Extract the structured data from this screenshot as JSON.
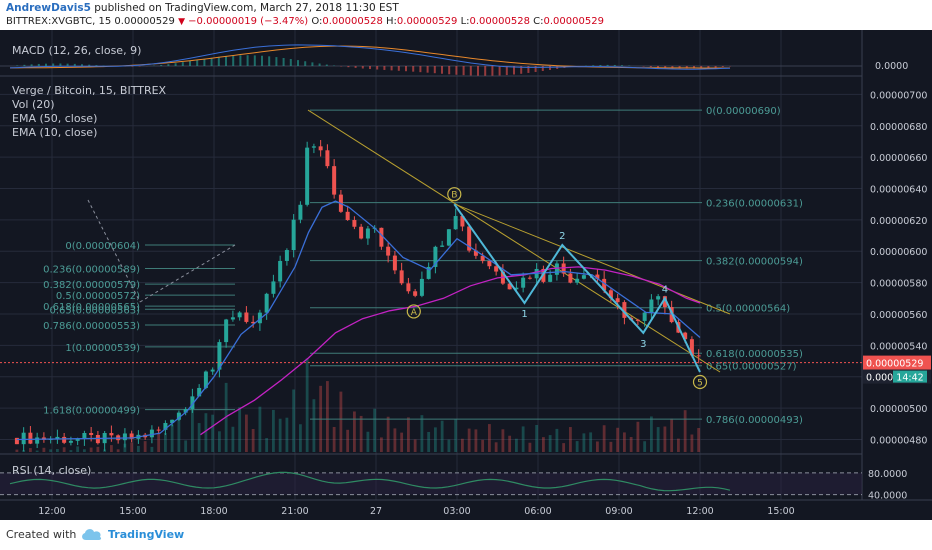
{
  "header": {
    "author": "AndrewDavis5",
    "published_text": "published on TradingView.com, March 27, 2018 11:30 EST",
    "symbol": "BITTREX:XVGBTC, 15",
    "last": "0.00000529",
    "change": "−0.00000019 (−3.47%)",
    "o_label": "O:",
    "o_value": "0.00000528",
    "h_label": "H:",
    "h_value": "0.00000529",
    "l_label": "L:",
    "l_value": "0.00000528",
    "c_label": "C:",
    "c_value": "0.00000529"
  },
  "indicators": {
    "macd": "MACD (12, 26, close, 9)",
    "symbol_title": "Verge / Bitcoin, 15, BITTREX",
    "vol": "Vol (20)",
    "ema50": "EMA (50, close)",
    "ema10": "EMA (10, close)",
    "rsi": "RSI (14, close)"
  },
  "footer": {
    "created_with": "Created with",
    "brand": "TradingView"
  },
  "colors": {
    "background": "#131722",
    "grid": "#262b3b",
    "up": "#26a69a",
    "down": "#ef5350",
    "ema50": "#c322c3",
    "ema10": "#3a6fd8",
    "pattern": "#4fb8d8",
    "fib": "#3f7c78",
    "fib_text": "#4c9c96",
    "macd_line": "#3a6fd8",
    "signal_line": "#e8882b",
    "rsi_line": "#2f8a63"
  },
  "chart_data": {
    "type": "candlestick",
    "title": "Verge / Bitcoin, 15, BITTREX",
    "y_ticks": [
      "0.00000700",
      "0.00000680",
      "0.00000660",
      "0.00000640",
      "0.00000620",
      "0.00000600",
      "0.00000580",
      "0.00000560",
      "0.00000540",
      "0.00000520",
      "0.00000500",
      "0.00000480"
    ],
    "ylim": [
      4.72e-06,
      7.06e-06
    ],
    "last_price_label": "0.00000529",
    "last_tag_text": "0.000",
    "countdown": "14:42",
    "x_ticks": [
      {
        "label": "12:00",
        "hour": -12
      },
      {
        "label": "15:00",
        "hour": -9
      },
      {
        "label": "18:00",
        "hour": -6
      },
      {
        "label": "21:00",
        "hour": -3
      },
      {
        "label": "27",
        "hour": 0
      },
      {
        "label": "03:00",
        "hour": 3
      },
      {
        "label": "06:00",
        "hour": 6
      },
      {
        "label": "09:00",
        "hour": 9
      },
      {
        "label": "12:00",
        "hour": 12
      },
      {
        "label": "15:00",
        "hour": 15
      }
    ],
    "x_start_hour": -13.3,
    "x_end_hour": 12.0,
    "candle_interval_hours": 0.25,
    "close_points": [
      [
        -13.3,
        481
      ],
      [
        -9.5,
        480
      ],
      [
        -9.0,
        481
      ],
      [
        -8.5,
        483
      ],
      [
        -8.0,
        486
      ],
      [
        -7.5,
        494
      ],
      [
        -7.2,
        503
      ],
      [
        -7.0,
        500
      ],
      [
        -6.6,
        515
      ],
      [
        -6.3,
        526
      ],
      [
        -6.0,
        525
      ],
      [
        -5.5,
        558
      ],
      [
        -5.0,
        562
      ],
      [
        -4.7,
        555
      ],
      [
        -4.4,
        552
      ],
      [
        -4.0,
        572
      ],
      [
        -3.6,
        590
      ],
      [
        -3.3,
        600
      ],
      [
        -3.0,
        620
      ],
      [
        -2.8,
        630
      ],
      [
        -2.5,
        676
      ],
      [
        -2.2,
        660
      ],
      [
        -1.9,
        664
      ],
      [
        -1.5,
        632
      ],
      [
        -1.0,
        622
      ],
      [
        -0.5,
        610
      ],
      [
        0.0,
        615
      ],
      [
        0.3,
        598
      ],
      [
        0.7,
        588
      ],
      [
        1.1,
        578
      ],
      [
        1.4,
        572
      ],
      [
        1.7,
        585
      ],
      [
        2.0,
        595
      ],
      [
        2.3,
        603
      ],
      [
        2.6,
        612
      ],
      [
        2.9,
        628
      ],
      [
        3.2,
        615
      ],
      [
        3.5,
        600
      ],
      [
        3.9,
        596
      ],
      [
        4.3,
        590
      ],
      [
        4.7,
        582
      ],
      [
        5.1,
        578
      ],
      [
        5.5,
        583
      ],
      [
        5.9,
        588
      ],
      [
        6.2,
        583
      ],
      [
        6.6,
        592
      ],
      [
        6.9,
        587
      ],
      [
        7.3,
        582
      ],
      [
        7.7,
        588
      ],
      [
        8.1,
        585
      ],
      [
        8.5,
        575
      ],
      [
        8.9,
        566
      ],
      [
        9.2,
        555
      ],
      [
        9.5,
        560
      ],
      [
        9.8,
        553
      ],
      [
        10.1,
        565
      ],
      [
        10.4,
        571
      ],
      [
        10.7,
        561
      ],
      [
        11.0,
        557
      ],
      [
        11.3,
        549
      ],
      [
        11.6,
        539
      ],
      [
        11.8,
        532
      ],
      [
        12.0,
        529
      ]
    ],
    "ema50_points": [
      [
        -6.5,
        483
      ],
      [
        -5.5,
        495
      ],
      [
        -4.5,
        505
      ],
      [
        -3.5,
        518
      ],
      [
        -2.5,
        532
      ],
      [
        -1.5,
        548
      ],
      [
        -0.5,
        557
      ],
      [
        0.5,
        562
      ],
      [
        1.5,
        565
      ],
      [
        2.5,
        570
      ],
      [
        3.5,
        578
      ],
      [
        4.5,
        583
      ],
      [
        5.5,
        585
      ],
      [
        6.5,
        589
      ],
      [
        7.5,
        590
      ],
      [
        8.5,
        588
      ],
      [
        9.5,
        584
      ],
      [
        10.5,
        579
      ],
      [
        11.5,
        570
      ],
      [
        12.0,
        567
      ]
    ],
    "ema10_points": [
      [
        -13.3,
        480
      ],
      [
        -9.0,
        481
      ],
      [
        -8.0,
        484
      ],
      [
        -7.0,
        498
      ],
      [
        -6.0,
        520
      ],
      [
        -5.0,
        547
      ],
      [
        -4.0,
        561
      ],
      [
        -3.0,
        590
      ],
      [
        -2.5,
        612
      ],
      [
        -2.0,
        628
      ],
      [
        -1.5,
        632
      ],
      [
        -1.0,
        628
      ],
      [
        0.0,
        614
      ],
      [
        1.0,
        596
      ],
      [
        2.0,
        588
      ],
      [
        3.0,
        608
      ],
      [
        4.0,
        597
      ],
      [
        5.0,
        585
      ],
      [
        6.0,
        586
      ],
      [
        7.0,
        587
      ],
      [
        8.0,
        585
      ],
      [
        9.0,
        573
      ],
      [
        10.0,
        561
      ],
      [
        11.0,
        560
      ],
      [
        12.0,
        545
      ]
    ],
    "volume_points": [
      [
        -13.3,
        1
      ],
      [
        -9.5,
        2
      ],
      [
        -9.0,
        4
      ],
      [
        -8.5,
        3
      ],
      [
        -8.0,
        6
      ],
      [
        -7.5,
        14
      ],
      [
        -7.0,
        9
      ],
      [
        -6.5,
        18
      ],
      [
        -6.0,
        12
      ],
      [
        -5.5,
        20
      ],
      [
        -5.0,
        15
      ],
      [
        -4.5,
        14
      ],
      [
        -4.0,
        11
      ],
      [
        -3.5,
        16
      ],
      [
        -3.0,
        19
      ],
      [
        -2.7,
        25
      ],
      [
        -2.3,
        30
      ],
      [
        -2.0,
        27
      ],
      [
        -1.5,
        18
      ],
      [
        -1.0,
        15
      ],
      [
        0.0,
        12
      ],
      [
        1.0,
        10
      ],
      [
        2.0,
        11
      ],
      [
        3.0,
        9
      ],
      [
        4.0,
        8
      ],
      [
        5.0,
        7
      ],
      [
        6.0,
        8
      ],
      [
        7.0,
        7
      ],
      [
        8.0,
        7
      ],
      [
        9.0,
        8
      ],
      [
        10.0,
        9
      ],
      [
        10.5,
        13
      ],
      [
        11.0,
        10
      ],
      [
        11.5,
        12
      ],
      [
        12.0,
        9
      ]
    ],
    "fib_left": [
      {
        "label": "0(0.00000604)",
        "value": 604
      },
      {
        "label": "0.236(0.00000589)",
        "value": 589
      },
      {
        "label": "0.382(0.00000579)",
        "value": 579
      },
      {
        "label": "0.5(0.00000572)",
        "value": 572
      },
      {
        "label": "0.618(0.00000565)",
        "value": 565
      },
      {
        "label": "0.65(0.00000563)",
        "value": 563
      },
      {
        "label": "0.786(0.00000553)",
        "value": 553
      },
      {
        "label": "1(0.00000539)",
        "value": 539
      },
      {
        "label": "1.618(0.00000499)",
        "value": 499
      }
    ],
    "fib_right": [
      {
        "label": "0(0.00000690)",
        "value": 690
      },
      {
        "label": "0.236(0.00000631)",
        "value": 631
      },
      {
        "label": "0.382(0.00000594)",
        "value": 594
      },
      {
        "label": "0.5(0.00000564)",
        "value": 564
      },
      {
        "label": "0.618(0.00000535)",
        "value": 535
      },
      {
        "label": "0.65(0.00000527)",
        "value": 527
      },
      {
        "label": "0.786(0.00000493)",
        "value": 493
      }
    ],
    "wave_points": [
      {
        "label": "B",
        "hour": 2.9,
        "value": 630
      },
      {
        "label": "1",
        "hour": 5.5,
        "value": 567
      },
      {
        "label": "2",
        "hour": 6.9,
        "value": 604
      },
      {
        "label": "3",
        "hour": 9.9,
        "value": 548
      },
      {
        "label": "4",
        "hour": 10.7,
        "value": 570
      },
      {
        "label": "5",
        "hour": 12.0,
        "value": 523
      },
      {
        "label": "A",
        "hour": 1.4,
        "value": 568
      }
    ],
    "macd_ticks": [
      "0.0000"
    ],
    "rsi_ticks": [
      "80.0000",
      "40.0000"
    ]
  }
}
